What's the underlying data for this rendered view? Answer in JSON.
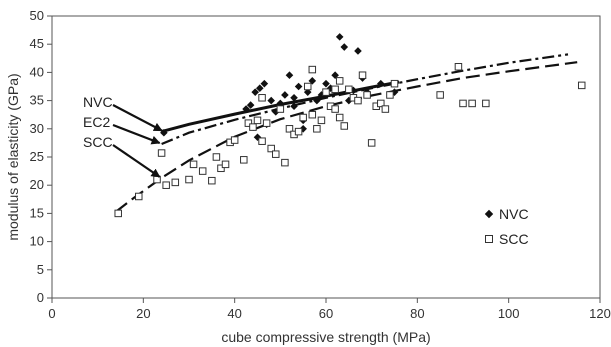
{
  "chart_data": {
    "type": "scatter",
    "xlabel": "cube compressive strength (MPa)",
    "ylabel": "modulus of elasticity (GPa)",
    "xlim": [
      0,
      120
    ],
    "ylim": [
      0,
      50
    ],
    "x_ticks": [
      0,
      20,
      40,
      60,
      80,
      100,
      120
    ],
    "y_ticks": [
      0,
      5,
      10,
      15,
      20,
      25,
      30,
      35,
      40,
      45,
      50
    ],
    "grid": false,
    "legend_position": "bottom-right",
    "series": [
      {
        "name": "NVC",
        "marker": "filled-diamond",
        "color": "#111111",
        "points": [
          [
            24.5,
            29.3
          ],
          [
            42.5,
            33.5
          ],
          [
            43.5,
            34.2
          ],
          [
            44.5,
            36.5
          ],
          [
            45.5,
            37.2
          ],
          [
            46.5,
            38.0
          ],
          [
            47,
            30.8
          ],
          [
            48,
            35.0
          ],
          [
            50,
            34.5
          ],
          [
            51,
            36.0
          ],
          [
            52,
            39.5
          ],
          [
            53,
            35.5
          ],
          [
            54,
            37.5
          ],
          [
            55,
            31.5
          ],
          [
            56,
            36.5
          ],
          [
            57,
            38.5
          ],
          [
            58,
            35.0
          ],
          [
            59,
            36.0
          ],
          [
            60,
            38.0
          ],
          [
            61,
            37.2
          ],
          [
            62,
            39.5
          ],
          [
            63,
            46.3
          ],
          [
            64,
            44.5
          ],
          [
            65,
            35.0
          ],
          [
            66,
            36.8
          ],
          [
            67,
            43.8
          ],
          [
            68,
            39.0
          ],
          [
            69,
            36.5
          ],
          [
            72,
            38.0
          ],
          [
            75,
            36.5
          ],
          [
            45,
            28.5
          ],
          [
            55,
            30.0
          ],
          [
            53,
            34.0
          ],
          [
            49,
            33.0
          ]
        ]
      },
      {
        "name": "SCC",
        "marker": "open-square",
        "color": "#222222",
        "points": [
          [
            14.5,
            15.0
          ],
          [
            19,
            18.0
          ],
          [
            23,
            21.0
          ],
          [
            24,
            25.7
          ],
          [
            25,
            20.0
          ],
          [
            27,
            20.5
          ],
          [
            30,
            21.0
          ],
          [
            31,
            23.7
          ],
          [
            33,
            22.5
          ],
          [
            36,
            25.0
          ],
          [
            37,
            23.0
          ],
          [
            38,
            23.7
          ],
          [
            39,
            27.6
          ],
          [
            40,
            28.0
          ],
          [
            42,
            24.5
          ],
          [
            43,
            31.0
          ],
          [
            44,
            30.3
          ],
          [
            45,
            31.5
          ],
          [
            46,
            27.8
          ],
          [
            47,
            31.0
          ],
          [
            48,
            26.5
          ],
          [
            49,
            25.5
          ],
          [
            50,
            33.5
          ],
          [
            51,
            24.0
          ],
          [
            52,
            30.0
          ],
          [
            53,
            29.0
          ],
          [
            54,
            29.5
          ],
          [
            55,
            32.0
          ],
          [
            56,
            37.5
          ],
          [
            57,
            32.5
          ],
          [
            58,
            30.0
          ],
          [
            59,
            31.5
          ],
          [
            60,
            36.5
          ],
          [
            61,
            34.0
          ],
          [
            62,
            37.0
          ],
          [
            63,
            38.5
          ],
          [
            64,
            30.5
          ],
          [
            65,
            37.0
          ],
          [
            66,
            35.5
          ],
          [
            67,
            35.0
          ],
          [
            68,
            39.5
          ],
          [
            69,
            36.0
          ],
          [
            70,
            27.5
          ],
          [
            71,
            34.0
          ],
          [
            72,
            34.5
          ],
          [
            73,
            33.5
          ],
          [
            74,
            36.0
          ],
          [
            75,
            38.0
          ],
          [
            85,
            36.0
          ],
          [
            89,
            41.0
          ],
          [
            90,
            34.5
          ],
          [
            92,
            34.5
          ],
          [
            95,
            34.5
          ],
          [
            116,
            37.7
          ],
          [
            35,
            20.8
          ],
          [
            46,
            35.5
          ],
          [
            57,
            40.5
          ],
          [
            63,
            32.0
          ],
          [
            62,
            33.5
          ]
        ]
      }
    ],
    "curves": [
      {
        "name": "NVC",
        "style": "solid",
        "points": [
          [
            24,
            29.5
          ],
          [
            30,
            30.8
          ],
          [
            40,
            32.6
          ],
          [
            50,
            34.3
          ],
          [
            60,
            35.8
          ],
          [
            70,
            37.4
          ],
          [
            76,
            38.3
          ]
        ]
      },
      {
        "name": "EC2",
        "style": "dash-dot",
        "points": [
          [
            24,
            27.3
          ],
          [
            30,
            29.3
          ],
          [
            40,
            31.6
          ],
          [
            50,
            33.6
          ],
          [
            60,
            35.5
          ],
          [
            70,
            37.2
          ],
          [
            80,
            38.8
          ],
          [
            90,
            40.3
          ],
          [
            100,
            41.7
          ],
          [
            113,
            43.2
          ]
        ]
      },
      {
        "name": "SCC",
        "style": "long-dash",
        "points": [
          [
            14,
            15.3
          ],
          [
            18,
            17.8
          ],
          [
            24,
            21.3
          ],
          [
            30,
            24.4
          ],
          [
            40,
            28.6
          ],
          [
            50,
            31.7
          ],
          [
            60,
            34.0
          ],
          [
            70,
            35.9
          ],
          [
            80,
            37.5
          ],
          [
            90,
            39.0
          ],
          [
            100,
            40.2
          ],
          [
            115,
            41.8
          ]
        ]
      }
    ],
    "annotations": [
      {
        "text": "NVC",
        "arrow_to": [
          24.5,
          29.5
        ]
      },
      {
        "text": "EC2",
        "arrow_to": [
          24,
          27.3
        ]
      },
      {
        "text": "SCC",
        "arrow_to": [
          24,
          21.3
        ]
      }
    ],
    "legend": [
      {
        "label": "NVC",
        "marker": "filled-diamond"
      },
      {
        "label": "SCC",
        "marker": "open-square"
      }
    ]
  }
}
